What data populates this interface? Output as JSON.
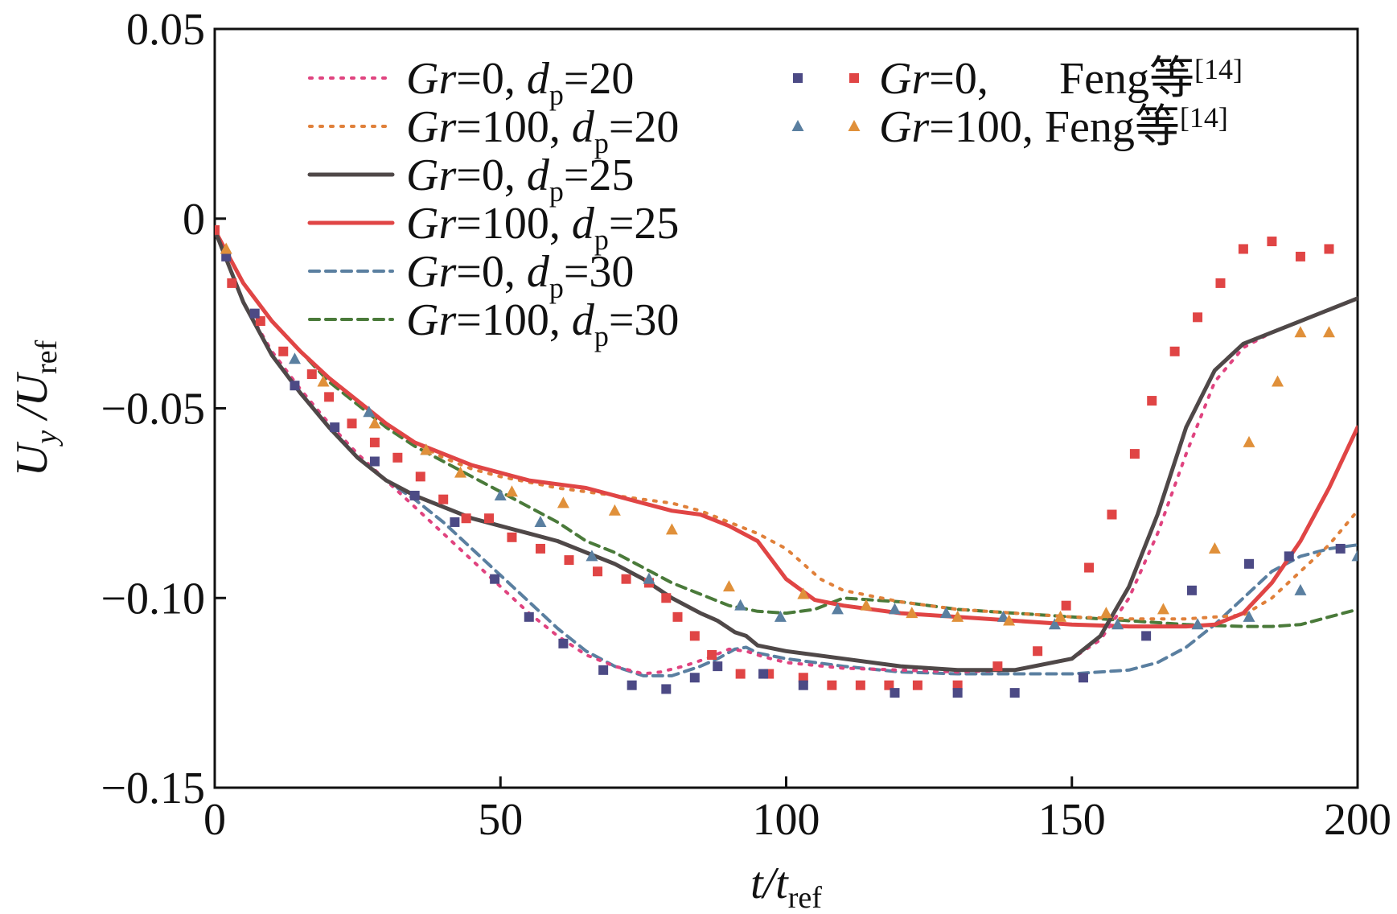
{
  "chart_data": {
    "type": "line",
    "xlabel": "t/t_ref",
    "ylabel": "U_y/U_ref",
    "xlim": [
      0,
      200
    ],
    "ylim": [
      -0.15,
      0.05
    ],
    "xticks": [
      0,
      50,
      100,
      150,
      200
    ],
    "xtick_labels": [
      "0",
      "50",
      "100",
      "150",
      "200"
    ],
    "yticks": [
      0.05,
      0,
      -0.05,
      -0.1,
      -0.15
    ],
    "ytick_labels": [
      "0.05",
      "0",
      "−0.05",
      "−0.10",
      "−0.15"
    ],
    "grid": false,
    "legend_left_placement": "top-left",
    "legend_right_placement": "top-center",
    "series": [
      {
        "name": "Gr=0, d_p=20",
        "gr": "0",
        "dp": "20",
        "style": "dotted",
        "color": "#e0437f",
        "x": [
          0,
          5,
          10,
          15,
          20,
          25,
          30,
          35,
          40,
          45,
          50,
          55,
          60,
          65,
          70,
          75,
          78,
          82,
          86,
          90,
          93,
          96,
          100,
          110,
          120,
          130,
          140,
          150,
          155,
          160,
          165,
          170,
          175,
          180,
          185,
          190,
          195,
          200
        ],
        "y": [
          -0.003,
          -0.022,
          -0.035,
          -0.045,
          -0.054,
          -0.062,
          -0.069,
          -0.076,
          -0.083,
          -0.09,
          -0.097,
          -0.104,
          -0.11,
          -0.115,
          -0.118,
          -0.12,
          -0.1195,
          -0.118,
          -0.116,
          -0.1135,
          -0.114,
          -0.1155,
          -0.117,
          -0.1185,
          -0.119,
          -0.1195,
          -0.119,
          -0.116,
          -0.111,
          -0.1,
          -0.083,
          -0.062,
          -0.043,
          -0.034,
          -0.03,
          -0.027,
          -0.024,
          -0.021
        ]
      },
      {
        "name": "Gr=100, d_p=20",
        "gr": "100",
        "dp": "20",
        "style": "dotted",
        "color": "#e0803a",
        "x": [
          0,
          5,
          10,
          15,
          20,
          25,
          30,
          35,
          40,
          45,
          50,
          55,
          60,
          65,
          70,
          75,
          80,
          85,
          90,
          95,
          100,
          103,
          106,
          110,
          120,
          130,
          140,
          150,
          160,
          170,
          180,
          185,
          190,
          195,
          200
        ],
        "y": [
          -0.003,
          -0.017,
          -0.027,
          -0.035,
          -0.042,
          -0.048,
          -0.054,
          -0.059,
          -0.063,
          -0.066,
          -0.068,
          -0.0695,
          -0.071,
          -0.072,
          -0.073,
          -0.074,
          -0.075,
          -0.077,
          -0.08,
          -0.083,
          -0.087,
          -0.091,
          -0.095,
          -0.098,
          -0.101,
          -0.103,
          -0.104,
          -0.105,
          -0.1055,
          -0.1055,
          -0.1045,
          -0.1,
          -0.093,
          -0.086,
          -0.077
        ]
      },
      {
        "name": "Gr=0, d_p=25",
        "gr": "0",
        "dp": "25",
        "style": "solid",
        "color": "#4f4848",
        "x": [
          0,
          5,
          10,
          15,
          20,
          25,
          30,
          35,
          40,
          45,
          50,
          55,
          60,
          65,
          70,
          75,
          80,
          85,
          88,
          91,
          93,
          95,
          100,
          110,
          120,
          130,
          140,
          150,
          155,
          160,
          165,
          170,
          175,
          180,
          185,
          190,
          195,
          200
        ],
        "y": [
          -0.003,
          -0.022,
          -0.036,
          -0.046,
          -0.055,
          -0.063,
          -0.069,
          -0.073,
          -0.076,
          -0.079,
          -0.081,
          -0.083,
          -0.085,
          -0.088,
          -0.091,
          -0.095,
          -0.1,
          -0.104,
          -0.106,
          -0.109,
          -0.11,
          -0.1125,
          -0.114,
          -0.116,
          -0.118,
          -0.119,
          -0.119,
          -0.116,
          -0.11,
          -0.097,
          -0.078,
          -0.055,
          -0.04,
          -0.033,
          -0.03,
          -0.027,
          -0.024,
          -0.021
        ]
      },
      {
        "name": "Gr=100, d_p=25",
        "gr": "100",
        "dp": "25",
        "style": "solid",
        "color": "#e04545",
        "x": [
          0,
          5,
          10,
          15,
          20,
          25,
          30,
          35,
          40,
          45,
          50,
          55,
          60,
          65,
          70,
          75,
          80,
          85,
          90,
          95,
          100,
          105,
          110,
          120,
          130,
          140,
          150,
          160,
          170,
          175,
          180,
          185,
          190,
          195,
          200
        ],
        "y": [
          -0.003,
          -0.017,
          -0.027,
          -0.035,
          -0.042,
          -0.048,
          -0.054,
          -0.059,
          -0.062,
          -0.065,
          -0.067,
          -0.069,
          -0.07,
          -0.071,
          -0.073,
          -0.075,
          -0.077,
          -0.078,
          -0.081,
          -0.085,
          -0.095,
          -0.1005,
          -0.102,
          -0.104,
          -0.105,
          -0.106,
          -0.107,
          -0.1075,
          -0.1075,
          -0.107,
          -0.104,
          -0.096,
          -0.085,
          -0.071,
          -0.055
        ]
      },
      {
        "name": "Gr=0, d_p=30",
        "gr": "0",
        "dp": "30",
        "style": "dashed",
        "color": "#5a7fa0",
        "x": [
          0,
          5,
          10,
          15,
          20,
          25,
          30,
          35,
          40,
          45,
          50,
          55,
          60,
          65,
          70,
          75,
          80,
          85,
          88,
          91,
          93,
          95,
          100,
          110,
          120,
          130,
          140,
          150,
          160,
          165,
          170,
          175,
          180,
          185,
          190,
          195,
          200
        ],
        "y": [
          -0.003,
          -0.022,
          -0.036,
          -0.046,
          -0.055,
          -0.063,
          -0.069,
          -0.074,
          -0.08,
          -0.087,
          -0.094,
          -0.101,
          -0.108,
          -0.114,
          -0.118,
          -0.1205,
          -0.1205,
          -0.118,
          -0.116,
          -0.1135,
          -0.113,
          -0.1145,
          -0.116,
          -0.118,
          -0.1195,
          -0.12,
          -0.12,
          -0.12,
          -0.119,
          -0.117,
          -0.113,
          -0.107,
          -0.1,
          -0.093,
          -0.089,
          -0.087,
          -0.086
        ]
      },
      {
        "name": "Gr=100, d_p=30",
        "gr": "100",
        "dp": "30",
        "style": "dashed",
        "color": "#4a7a3a",
        "x": [
          0,
          5,
          10,
          15,
          20,
          25,
          30,
          35,
          40,
          45,
          50,
          55,
          60,
          65,
          70,
          75,
          80,
          85,
          90,
          95,
          100,
          105,
          110,
          120,
          130,
          140,
          150,
          160,
          170,
          180,
          185,
          190,
          195,
          200
        ],
        "y": [
          -0.003,
          -0.017,
          -0.027,
          -0.035,
          -0.043,
          -0.049,
          -0.055,
          -0.06,
          -0.064,
          -0.068,
          -0.072,
          -0.076,
          -0.08,
          -0.085,
          -0.088,
          -0.092,
          -0.096,
          -0.099,
          -0.102,
          -0.1035,
          -0.104,
          -0.103,
          -0.1,
          -0.101,
          -0.103,
          -0.104,
          -0.105,
          -0.106,
          -0.107,
          -0.1075,
          -0.1075,
          -0.107,
          -0.105,
          -0.103
        ]
      }
    ],
    "scatter_series": [
      {
        "name": "Gr=0, Feng等[14]",
        "marker": "square",
        "color": "#e04545",
        "x": [
          0,
          3,
          8,
          12,
          17,
          20,
          24,
          28,
          32,
          36,
          40,
          44,
          48,
          52,
          57,
          62,
          67,
          72,
          76,
          79,
          81,
          84,
          87,
          92,
          97,
          103,
          108,
          113,
          118,
          123,
          130,
          137,
          144,
          149,
          153,
          157,
          161,
          164,
          168,
          172,
          176,
          180,
          185,
          190,
          195
        ],
        "y": [
          -0.003,
          -0.017,
          -0.027,
          -0.035,
          -0.041,
          -0.047,
          -0.054,
          -0.059,
          -0.063,
          -0.068,
          -0.074,
          -0.079,
          -0.079,
          -0.084,
          -0.087,
          -0.09,
          -0.093,
          -0.095,
          -0.096,
          -0.1,
          -0.105,
          -0.11,
          -0.115,
          -0.12,
          -0.12,
          -0.121,
          -0.123,
          -0.123,
          -0.123,
          -0.123,
          -0.123,
          -0.118,
          -0.114,
          -0.102,
          -0.092,
          -0.078,
          -0.062,
          -0.048,
          -0.035,
          -0.026,
          -0.017,
          -0.008,
          -0.006,
          -0.01,
          -0.008
        ]
      },
      {
        "name": "Gr=0, Feng等[14]",
        "marker": "square",
        "color": "#4c4a85",
        "x": [
          2,
          7,
          14,
          21,
          28,
          35,
          42,
          49,
          55,
          61,
          68,
          73,
          79,
          84,
          88,
          96,
          103,
          119,
          130,
          140,
          152,
          163,
          171,
          181,
          188,
          197
        ],
        "y": [
          -0.01,
          -0.025,
          -0.044,
          -0.055,
          -0.064,
          -0.073,
          -0.08,
          -0.095,
          -0.105,
          -0.112,
          -0.119,
          -0.123,
          -0.124,
          -0.121,
          -0.118,
          -0.12,
          -0.123,
          -0.125,
          -0.125,
          -0.125,
          -0.121,
          -0.11,
          -0.098,
          -0.091,
          -0.089,
          -0.087
        ]
      },
      {
        "name": "Gr=100, Feng等[14]",
        "marker": "triangle",
        "color": "#5a7fa0",
        "x": [
          14,
          27,
          37,
          50,
          57,
          66,
          76,
          92,
          99,
          109,
          119,
          128,
          138,
          147,
          158,
          172,
          181,
          190,
          200
        ],
        "y": [
          -0.037,
          -0.051,
          -0.061,
          -0.073,
          -0.08,
          -0.089,
          -0.095,
          -0.102,
          -0.105,
          -0.103,
          -0.103,
          -0.104,
          -0.105,
          -0.107,
          -0.107,
          -0.107,
          -0.105,
          -0.098,
          -0.089
        ]
      },
      {
        "name": "Gr=100, Feng等[14]",
        "marker": "triangle",
        "color": "#e0903a",
        "x": [
          2,
          19,
          28,
          37,
          43,
          52,
          61,
          70,
          80,
          90,
          103,
          114,
          122,
          130,
          139,
          148,
          156,
          166,
          175,
          181,
          186,
          190,
          195
        ],
        "y": [
          -0.008,
          -0.043,
          -0.054,
          -0.061,
          -0.067,
          -0.072,
          -0.075,
          -0.077,
          -0.082,
          -0.097,
          -0.099,
          -0.102,
          -0.104,
          -0.105,
          -0.106,
          -0.105,
          -0.104,
          -0.103,
          -0.087,
          -0.059,
          -0.043,
          -0.03,
          -0.03
        ]
      }
    ],
    "legend_left": [
      {
        "gr": "0",
        "dp": "20",
        "style": "dotted",
        "color": "#e0437f"
      },
      {
        "gr": "100",
        "dp": "20",
        "style": "dotted",
        "color": "#e0803a"
      },
      {
        "gr": "0",
        "dp": "25",
        "style": "solid",
        "color": "#4f4848"
      },
      {
        "gr": "100",
        "dp": "25",
        "style": "solid",
        "color": "#e04545"
      },
      {
        "gr": "0",
        "dp": "30",
        "style": "dashed",
        "color": "#5a7fa0"
      },
      {
        "gr": "100",
        "dp": "30",
        "style": "dashed",
        "color": "#4a7a3a"
      }
    ],
    "legend_right": [
      {
        "gr": "0,",
        "suffix": "Feng等",
        "ref": "[14]",
        "marker": "square",
        "colors": [
          "#4c4a85",
          "#e04545"
        ]
      },
      {
        "gr": "100, Feng等",
        "suffix": "",
        "ref": "[14]",
        "marker": "triangle",
        "colors": [
          "#5a7fa0",
          "#e0903a"
        ]
      }
    ],
    "text": {
      "gr_symbol": "Gr",
      "eq": "=",
      "dp_symbol": "d",
      "dp_sub": "p",
      "comma": ", ",
      "xlabel_main": "t/t",
      "xlabel_sub": "ref",
      "ylabel_u1": "U",
      "ylabel_sub1": "y",
      "ylabel_slash": " /U",
      "ylabel_sub2": "ref"
    }
  }
}
